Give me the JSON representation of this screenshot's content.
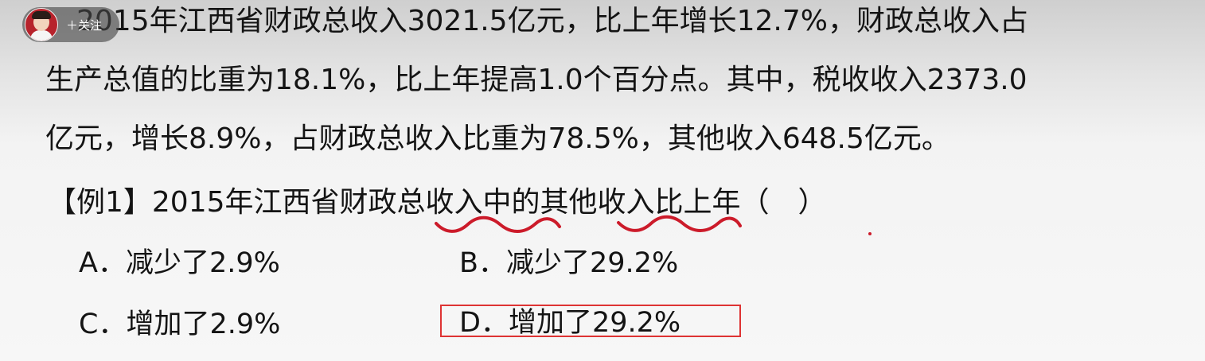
{
  "follow_widget": {
    "avatar_icon": "presenter-avatar-icon",
    "follow_label": "＋关注"
  },
  "paragraph": {
    "line1": "2015年江西省财政总收入3021.5亿元，比上年增长12.7%，财政总收入占",
    "line2": "生产总值的比重为18.1%，比上年提高1.0个百分点。其中，税收收入2373.0",
    "line3": "亿元，增长8.9%，占财政总收入比重为78.5%，其他收入648.5亿元。"
  },
  "question": {
    "text": "【例1】2015年江西省财政总收入中的其他收入比上年（　）"
  },
  "options": {
    "a": "A．减少了2.9%",
    "b": "B．减少了29.2%",
    "c": "C．增加了2.9%",
    "d": "D．增加了29.2%"
  },
  "annotations": {
    "highlighted_option": "D",
    "ink_color": "#cc1b2a",
    "box_color": "#de3333"
  }
}
